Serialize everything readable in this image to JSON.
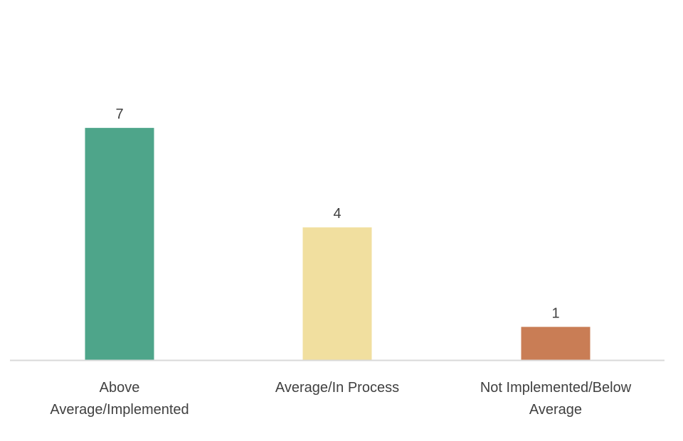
{
  "chart_data": {
    "type": "bar",
    "title": "",
    "xlabel": "",
    "ylabel": "",
    "categories": [
      [
        "Above",
        "Average/Implemented"
      ],
      [
        "Average/In Process"
      ],
      [
        "Not Implemented/Below",
        "Average"
      ]
    ],
    "values": [
      7,
      4,
      1
    ],
    "data_labels": [
      "7",
      "4",
      "1"
    ],
    "colors": [
      "#4ea58a",
      "#f1df9f",
      "#c97d55"
    ],
    "ylim": [
      0,
      8.2
    ],
    "grid": false,
    "legend": "none",
    "axis_color": "#d9d9d9"
  }
}
